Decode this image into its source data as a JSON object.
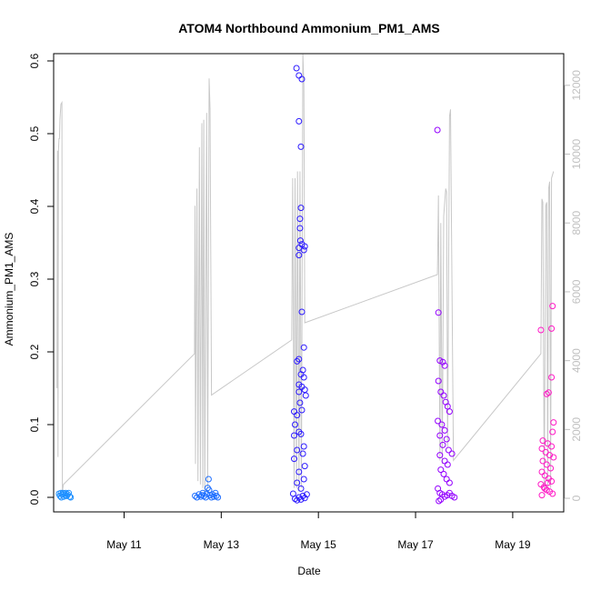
{
  "chart_data": {
    "type": "scatter",
    "title": "ATOM4 Northbound Ammonium_PM1_AMS",
    "xlabel": "Date",
    "ylabel": "Ammonium_PM1_AMS",
    "x_ticks": [
      "May 11",
      "May 13",
      "May 15",
      "May 17",
      "May 19"
    ],
    "x_tick_days": [
      11,
      13,
      15,
      17,
      19
    ],
    "xlim_days": [
      9.55,
      20.05
    ],
    "ylim": [
      -0.02,
      0.61
    ],
    "y_ticks": [
      0.0,
      0.1,
      0.2,
      0.3,
      0.4,
      0.5,
      0.6
    ],
    "y2_ticks": [
      0,
      2000,
      4000,
      6000,
      8000,
      10000,
      12000
    ],
    "y2lim": [
      -395,
      12920
    ],
    "point_style": "open-circle",
    "series": [
      {
        "color": "#1e90ff",
        "day_range": [
          9.65,
          9.9
        ],
        "points": [
          [
            9.66,
            0.005
          ],
          [
            9.68,
            0.002
          ],
          [
            9.7,
            0.006
          ],
          [
            9.71,
            0.0
          ],
          [
            9.73,
            0.004
          ],
          [
            9.74,
            0.006
          ],
          [
            9.76,
            0.001
          ],
          [
            9.77,
            0.005
          ],
          [
            9.79,
            0.003
          ],
          [
            9.8,
            0.006
          ],
          [
            9.82,
            0.002
          ],
          [
            9.84,
            0.004
          ],
          [
            9.86,
            0.006
          ],
          [
            9.88,
            0.001
          ],
          [
            9.9,
            0.0
          ]
        ]
      },
      {
        "color": "#1f6fff",
        "day_range": [
          12.45,
          12.95
        ],
        "points": [
          [
            12.46,
            0.002
          ],
          [
            12.5,
            0.0
          ],
          [
            12.54,
            0.004
          ],
          [
            12.58,
            0.001
          ],
          [
            12.6,
            0.003
          ],
          [
            12.62,
            0.006
          ],
          [
            12.65,
            0.002
          ],
          [
            12.68,
            0.0
          ],
          [
            12.7,
            0.005
          ],
          [
            12.72,
            0.013
          ],
          [
            12.74,
            0.025
          ],
          [
            12.75,
            0.01
          ],
          [
            12.77,
            0.003
          ],
          [
            12.8,
            0.0
          ],
          [
            12.82,
            0.004
          ],
          [
            12.85,
            0.001
          ],
          [
            12.88,
            0.006
          ],
          [
            12.9,
            0.002
          ],
          [
            12.93,
            0.0
          ]
        ]
      },
      {
        "color": "#2d1bff",
        "day_range": [
          14.45,
          14.95
        ],
        "points": [
          [
            14.55,
            0.59
          ],
          [
            14.6,
            0.58
          ],
          [
            14.66,
            0.575
          ],
          [
            14.6,
            0.517
          ],
          [
            14.64,
            0.482
          ],
          [
            14.64,
            0.398
          ],
          [
            14.62,
            0.383
          ],
          [
            14.62,
            0.37
          ],
          [
            14.63,
            0.353
          ],
          [
            14.66,
            0.348
          ],
          [
            14.72,
            0.345
          ],
          [
            14.6,
            0.343
          ],
          [
            14.7,
            0.34
          ],
          [
            14.6,
            0.333
          ],
          [
            14.66,
            0.255
          ],
          [
            14.7,
            0.206
          ],
          [
            14.6,
            0.19
          ],
          [
            14.56,
            0.187
          ],
          [
            14.68,
            0.175
          ],
          [
            14.64,
            0.169
          ],
          [
            14.7,
            0.165
          ],
          [
            14.6,
            0.155
          ],
          [
            14.66,
            0.152
          ],
          [
            14.72,
            0.148
          ],
          [
            14.6,
            0.145
          ],
          [
            14.74,
            0.14
          ],
          [
            14.62,
            0.13
          ],
          [
            14.66,
            0.12
          ],
          [
            14.5,
            0.118
          ],
          [
            14.56,
            0.113
          ],
          [
            14.52,
            0.1
          ],
          [
            14.6,
            0.09
          ],
          [
            14.64,
            0.087
          ],
          [
            14.5,
            0.085
          ],
          [
            14.7,
            0.07
          ],
          [
            14.56,
            0.065
          ],
          [
            14.68,
            0.06
          ],
          [
            14.5,
            0.053
          ],
          [
            14.72,
            0.043
          ],
          [
            14.6,
            0.035
          ],
          [
            14.7,
            0.025
          ],
          [
            14.56,
            0.02
          ],
          [
            14.64,
            0.012
          ],
          [
            14.48,
            0.005
          ],
          [
            14.52,
            -0.002
          ],
          [
            14.56,
            -0.004
          ],
          [
            14.6,
            0.0
          ],
          [
            14.64,
            -0.003
          ],
          [
            14.68,
            0.002
          ],
          [
            14.72,
            -0.001
          ],
          [
            14.76,
            0.004
          ]
        ]
      },
      {
        "color": "#9400ff",
        "day_range": [
          17.4,
          17.9
        ],
        "points": [
          [
            17.45,
            0.505
          ],
          [
            17.47,
            0.254
          ],
          [
            17.5,
            0.188
          ],
          [
            17.56,
            0.186
          ],
          [
            17.6,
            0.181
          ],
          [
            17.47,
            0.16
          ],
          [
            17.52,
            0.145
          ],
          [
            17.58,
            0.14
          ],
          [
            17.62,
            0.131
          ],
          [
            17.66,
            0.125
          ],
          [
            17.7,
            0.118
          ],
          [
            17.46,
            0.105
          ],
          [
            17.54,
            0.1
          ],
          [
            17.6,
            0.092
          ],
          [
            17.5,
            0.085
          ],
          [
            17.64,
            0.08
          ],
          [
            17.56,
            0.072
          ],
          [
            17.68,
            0.065
          ],
          [
            17.75,
            0.06
          ],
          [
            17.5,
            0.058
          ],
          [
            17.6,
            0.05
          ],
          [
            17.66,
            0.045
          ],
          [
            17.52,
            0.038
          ],
          [
            17.58,
            0.032
          ],
          [
            17.64,
            0.025
          ],
          [
            17.7,
            0.02
          ],
          [
            17.46,
            0.012
          ],
          [
            17.5,
            0.006
          ],
          [
            17.55,
            0.004
          ],
          [
            17.6,
            0.001
          ],
          [
            17.65,
            0.003
          ],
          [
            17.7,
            0.006
          ],
          [
            17.75,
            0.002
          ],
          [
            17.8,
            0.0
          ],
          [
            17.48,
            -0.005
          ],
          [
            17.52,
            -0.003
          ]
        ]
      },
      {
        "color": "#ff1ac6",
        "day_range": [
          19.5,
          19.95
        ],
        "points": [
          [
            19.82,
            0.263
          ],
          [
            19.58,
            0.23
          ],
          [
            19.8,
            0.232
          ],
          [
            19.8,
            0.165
          ],
          [
            19.74,
            0.144
          ],
          [
            19.7,
            0.142
          ],
          [
            19.84,
            0.103
          ],
          [
            19.82,
            0.09
          ],
          [
            19.62,
            0.078
          ],
          [
            19.72,
            0.074
          ],
          [
            19.8,
            0.07
          ],
          [
            19.6,
            0.067
          ],
          [
            19.68,
            0.062
          ],
          [
            19.76,
            0.058
          ],
          [
            19.84,
            0.055
          ],
          [
            19.62,
            0.05
          ],
          [
            19.7,
            0.045
          ],
          [
            19.78,
            0.04
          ],
          [
            19.6,
            0.035
          ],
          [
            19.66,
            0.03
          ],
          [
            19.74,
            0.026
          ],
          [
            19.8,
            0.022
          ],
          [
            19.58,
            0.018
          ],
          [
            19.64,
            0.014
          ],
          [
            19.7,
            0.01
          ],
          [
            19.76,
            0.008
          ],
          [
            19.82,
            0.005
          ],
          [
            19.6,
            0.003
          ],
          [
            19.66,
            0.012
          ],
          [
            19.72,
            0.02
          ]
        ]
      }
    ],
    "secondary_line": {
      "color": "#c8c8c8",
      "axis": "right",
      "points": [
        [
          9.62,
          3200
        ],
        [
          9.63,
          10100
        ],
        [
          9.64,
          1200
        ],
        [
          9.65,
          10100
        ],
        [
          9.66,
          10450
        ],
        [
          9.67,
          10450
        ],
        [
          9.68,
          11000
        ],
        [
          9.7,
          11450
        ],
        [
          9.72,
          11500
        ],
        [
          9.73,
          200
        ],
        [
          9.75,
          400
        ],
        [
          12.45,
          4200
        ],
        [
          12.46,
          8500
        ],
        [
          12.47,
          1000
        ],
        [
          12.5,
          9000
        ],
        [
          12.52,
          500
        ],
        [
          12.55,
          10200
        ],
        [
          12.57,
          400
        ],
        [
          12.6,
          10900
        ],
        [
          12.62,
          300
        ],
        [
          12.64,
          11000
        ],
        [
          12.66,
          200
        ],
        [
          12.7,
          11200
        ],
        [
          12.72,
          300
        ],
        [
          12.75,
          12200
        ],
        [
          12.77,
          11300
        ],
        [
          12.8,
          3000
        ],
        [
          14.45,
          4600
        ],
        [
          14.47,
          9300
        ],
        [
          14.5,
          300
        ],
        [
          14.52,
          9300
        ],
        [
          14.55,
          300
        ],
        [
          14.57,
          9500
        ],
        [
          14.6,
          200
        ],
        [
          14.62,
          9500
        ],
        [
          14.65,
          300
        ],
        [
          14.68,
          12900
        ],
        [
          14.7,
          12000
        ],
        [
          14.72,
          5100
        ],
        [
          17.45,
          6500
        ],
        [
          17.47,
          8800
        ],
        [
          17.5,
          1100
        ],
        [
          17.52,
          8000
        ],
        [
          17.55,
          1000
        ],
        [
          17.58,
          8200
        ],
        [
          17.62,
          9000
        ],
        [
          17.64,
          8900
        ],
        [
          17.66,
          1500
        ],
        [
          17.7,
          11100
        ],
        [
          17.72,
          11300
        ],
        [
          17.78,
          1100
        ],
        [
          19.58,
          4200
        ],
        [
          19.6,
          8700
        ],
        [
          19.62,
          8600
        ],
        [
          19.65,
          200
        ],
        [
          19.68,
          8500
        ],
        [
          19.7,
          8600
        ],
        [
          19.72,
          300
        ],
        [
          19.74,
          9000
        ],
        [
          19.76,
          9200
        ],
        [
          19.78,
          300
        ],
        [
          19.8,
          9300
        ],
        [
          19.82,
          9400
        ],
        [
          19.84,
          9500
        ]
      ]
    }
  }
}
